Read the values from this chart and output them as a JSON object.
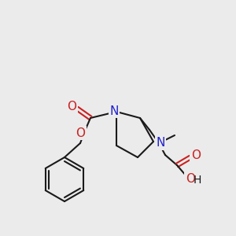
{
  "bg_color": "#ebebeb",
  "bond_color": "#1a1a1a",
  "N_color": "#2020cc",
  "O_color": "#cc2020",
  "line_width": 1.5,
  "font_size": 10,
  "fig_w": 3.0,
  "fig_h": 3.0,
  "dpi": 100,
  "xlim": [
    0,
    300
  ],
  "ylim": [
    0,
    300
  ]
}
